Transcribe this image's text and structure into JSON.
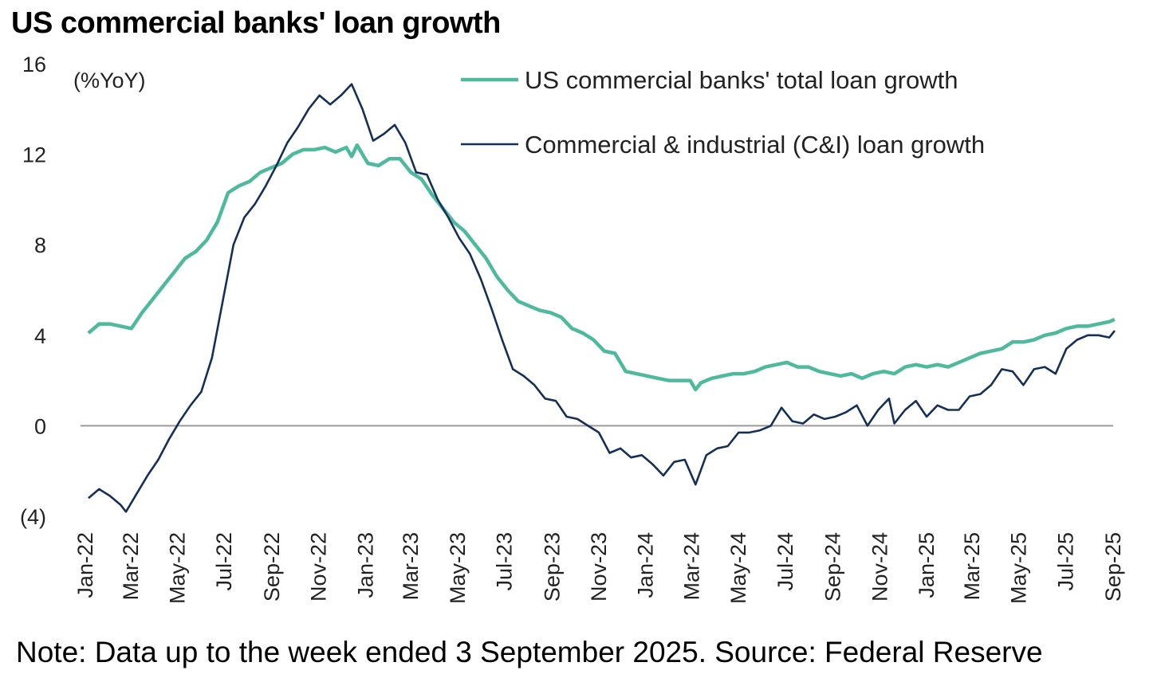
{
  "title": "US commercial banks' loan growth",
  "note": "Note: Data up to the week ended 3 September 2025. Source: Federal Reserve",
  "colors": {
    "total": "#4dba9e",
    "ci": "#14305a",
    "zero_line": "#9a9a9a"
  },
  "chart_data": {
    "type": "line",
    "title": "US commercial banks' loan growth",
    "unit_label": "(%YoY)",
    "ylim": [
      -4,
      16
    ],
    "yticks": [
      16,
      12,
      8,
      4,
      0,
      -4
    ],
    "ytick_labels": [
      "16",
      "12",
      "8",
      "4",
      "0",
      "(4)"
    ],
    "x_range": [
      "2022-01",
      "2025-09"
    ],
    "xtick_labels": [
      "Jan-22",
      "Mar-22",
      "May-22",
      "Jul-22",
      "Sep-22",
      "Nov-22",
      "Jan-23",
      "Mar-23",
      "May-23",
      "Jul-23",
      "Sep-23",
      "Nov-23",
      "Jan-24",
      "Mar-24",
      "May-24",
      "Jul-24",
      "Sep-24",
      "Nov-24",
      "Jan-25",
      "Mar-25",
      "May-25",
      "Jul-25",
      "Sep-25"
    ],
    "grid": false,
    "legend_position": "top-right",
    "series": [
      {
        "name": "US commercial banks' total loan growth",
        "color": "#4dba9e",
        "points": [
          [
            "2022-01-05",
            4.1
          ],
          [
            "2022-01-19",
            4.5
          ],
          [
            "2022-02-02",
            4.5
          ],
          [
            "2022-02-16",
            4.4
          ],
          [
            "2022-03-02",
            4.3
          ],
          [
            "2022-03-16",
            5.0
          ],
          [
            "2022-03-30",
            5.6
          ],
          [
            "2022-04-13",
            6.2
          ],
          [
            "2022-04-27",
            6.8
          ],
          [
            "2022-05-11",
            7.4
          ],
          [
            "2022-05-25",
            7.7
          ],
          [
            "2022-06-08",
            8.2
          ],
          [
            "2022-06-22",
            9.0
          ],
          [
            "2022-07-06",
            10.3
          ],
          [
            "2022-07-20",
            10.6
          ],
          [
            "2022-08-03",
            10.8
          ],
          [
            "2022-08-17",
            11.2
          ],
          [
            "2022-08-31",
            11.4
          ],
          [
            "2022-09-14",
            11.6
          ],
          [
            "2022-09-28",
            12.0
          ],
          [
            "2022-10-12",
            12.2
          ],
          [
            "2022-10-26",
            12.2
          ],
          [
            "2022-11-09",
            12.3
          ],
          [
            "2022-11-23",
            12.1
          ],
          [
            "2022-12-07",
            12.3
          ],
          [
            "2022-12-14",
            11.9
          ],
          [
            "2022-12-21",
            12.4
          ],
          [
            "2023-01-04",
            11.6
          ],
          [
            "2023-01-18",
            11.5
          ],
          [
            "2023-02-01",
            11.8
          ],
          [
            "2023-02-15",
            11.8
          ],
          [
            "2023-03-01",
            11.2
          ],
          [
            "2023-03-15",
            10.9
          ],
          [
            "2023-03-29",
            10.2
          ],
          [
            "2023-04-12",
            9.6
          ],
          [
            "2023-04-26",
            9.0
          ],
          [
            "2023-05-10",
            8.6
          ],
          [
            "2023-05-24",
            8.0
          ],
          [
            "2023-06-07",
            7.4
          ],
          [
            "2023-06-21",
            6.6
          ],
          [
            "2023-07-05",
            6.0
          ],
          [
            "2023-07-19",
            5.5
          ],
          [
            "2023-08-02",
            5.3
          ],
          [
            "2023-08-16",
            5.1
          ],
          [
            "2023-08-30",
            5.0
          ],
          [
            "2023-09-13",
            4.8
          ],
          [
            "2023-09-27",
            4.3
          ],
          [
            "2023-10-11",
            4.1
          ],
          [
            "2023-10-25",
            3.8
          ],
          [
            "2023-11-08",
            3.3
          ],
          [
            "2023-11-22",
            3.2
          ],
          [
            "2023-12-06",
            2.4
          ],
          [
            "2023-12-20",
            2.3
          ],
          [
            "2024-01-03",
            2.2
          ],
          [
            "2024-01-17",
            2.1
          ],
          [
            "2024-01-31",
            2.0
          ],
          [
            "2024-02-14",
            2.0
          ],
          [
            "2024-02-28",
            2.0
          ],
          [
            "2024-03-06",
            1.6
          ],
          [
            "2024-03-13",
            1.9
          ],
          [
            "2024-03-27",
            2.1
          ],
          [
            "2024-04-10",
            2.2
          ],
          [
            "2024-04-24",
            2.3
          ],
          [
            "2024-05-08",
            2.3
          ],
          [
            "2024-05-22",
            2.4
          ],
          [
            "2024-06-05",
            2.6
          ],
          [
            "2024-06-19",
            2.7
          ],
          [
            "2024-07-03",
            2.8
          ],
          [
            "2024-07-17",
            2.6
          ],
          [
            "2024-07-31",
            2.6
          ],
          [
            "2024-08-14",
            2.4
          ],
          [
            "2024-08-28",
            2.3
          ],
          [
            "2024-09-11",
            2.2
          ],
          [
            "2024-09-25",
            2.3
          ],
          [
            "2024-10-09",
            2.1
          ],
          [
            "2024-10-23",
            2.3
          ],
          [
            "2024-11-06",
            2.4
          ],
          [
            "2024-11-20",
            2.3
          ],
          [
            "2024-12-04",
            2.6
          ],
          [
            "2024-12-18",
            2.7
          ],
          [
            "2025-01-01",
            2.6
          ],
          [
            "2025-01-15",
            2.7
          ],
          [
            "2025-01-29",
            2.6
          ],
          [
            "2025-02-12",
            2.8
          ],
          [
            "2025-02-26",
            3.0
          ],
          [
            "2025-03-12",
            3.2
          ],
          [
            "2025-03-26",
            3.3
          ],
          [
            "2025-04-09",
            3.4
          ],
          [
            "2025-04-23",
            3.7
          ],
          [
            "2025-05-07",
            3.7
          ],
          [
            "2025-05-21",
            3.8
          ],
          [
            "2025-06-04",
            4.0
          ],
          [
            "2025-06-18",
            4.1
          ],
          [
            "2025-07-02",
            4.3
          ],
          [
            "2025-07-16",
            4.4
          ],
          [
            "2025-07-30",
            4.4
          ],
          [
            "2025-08-13",
            4.5
          ],
          [
            "2025-08-27",
            4.6
          ],
          [
            "2025-09-03",
            4.7
          ]
        ]
      },
      {
        "name": "Commercial & industrial (C&I) loan growth",
        "color": "#14305a",
        "points": [
          [
            "2022-01-05",
            -3.2
          ],
          [
            "2022-01-19",
            -2.8
          ],
          [
            "2022-02-02",
            -3.1
          ],
          [
            "2022-02-16",
            -3.5
          ],
          [
            "2022-02-23",
            -3.8
          ],
          [
            "2022-03-09",
            -3.0
          ],
          [
            "2022-03-23",
            -2.2
          ],
          [
            "2022-04-06",
            -1.5
          ],
          [
            "2022-04-20",
            -0.6
          ],
          [
            "2022-05-04",
            0.2
          ],
          [
            "2022-05-18",
            0.9
          ],
          [
            "2022-06-01",
            1.5
          ],
          [
            "2022-06-15",
            3.0
          ],
          [
            "2022-06-29",
            5.5
          ],
          [
            "2022-07-13",
            8.0
          ],
          [
            "2022-07-27",
            9.2
          ],
          [
            "2022-08-10",
            9.8
          ],
          [
            "2022-08-24",
            10.6
          ],
          [
            "2022-09-07",
            11.5
          ],
          [
            "2022-09-21",
            12.5
          ],
          [
            "2022-10-05",
            13.2
          ],
          [
            "2022-10-19",
            14.0
          ],
          [
            "2022-11-02",
            14.6
          ],
          [
            "2022-11-16",
            14.2
          ],
          [
            "2022-11-30",
            14.6
          ],
          [
            "2022-12-14",
            15.1
          ],
          [
            "2022-12-28",
            14.0
          ],
          [
            "2023-01-11",
            12.6
          ],
          [
            "2023-01-25",
            12.9
          ],
          [
            "2023-02-08",
            13.3
          ],
          [
            "2023-02-22",
            12.5
          ],
          [
            "2023-03-08",
            11.2
          ],
          [
            "2023-03-22",
            11.1
          ],
          [
            "2023-04-05",
            10.0
          ],
          [
            "2023-04-19",
            9.2
          ],
          [
            "2023-05-03",
            8.3
          ],
          [
            "2023-05-17",
            7.6
          ],
          [
            "2023-05-31",
            6.5
          ],
          [
            "2023-06-14",
            5.2
          ],
          [
            "2023-06-28",
            3.8
          ],
          [
            "2023-07-12",
            2.5
          ],
          [
            "2023-07-26",
            2.2
          ],
          [
            "2023-08-09",
            1.8
          ],
          [
            "2023-08-23",
            1.2
          ],
          [
            "2023-09-06",
            1.1
          ],
          [
            "2023-09-20",
            0.4
          ],
          [
            "2023-10-04",
            0.3
          ],
          [
            "2023-10-18",
            0.0
          ],
          [
            "2023-11-01",
            -0.3
          ],
          [
            "2023-11-15",
            -1.2
          ],
          [
            "2023-11-29",
            -1.0
          ],
          [
            "2023-12-13",
            -1.4
          ],
          [
            "2023-12-27",
            -1.3
          ],
          [
            "2024-01-10",
            -1.7
          ],
          [
            "2024-01-24",
            -2.2
          ],
          [
            "2024-02-07",
            -1.6
          ],
          [
            "2024-02-21",
            -1.5
          ],
          [
            "2024-03-06",
            -2.6
          ],
          [
            "2024-03-20",
            -1.3
          ],
          [
            "2024-04-03",
            -1.0
          ],
          [
            "2024-04-17",
            -0.9
          ],
          [
            "2024-05-01",
            -0.3
          ],
          [
            "2024-05-15",
            -0.3
          ],
          [
            "2024-05-29",
            -0.2
          ],
          [
            "2024-06-12",
            0.0
          ],
          [
            "2024-06-26",
            0.8
          ],
          [
            "2024-07-10",
            0.2
          ],
          [
            "2024-07-24",
            0.1
          ],
          [
            "2024-08-07",
            0.5
          ],
          [
            "2024-08-21",
            0.3
          ],
          [
            "2024-09-04",
            0.4
          ],
          [
            "2024-09-18",
            0.6
          ],
          [
            "2024-10-02",
            0.9
          ],
          [
            "2024-10-16",
            0.0
          ],
          [
            "2024-10-30",
            0.7
          ],
          [
            "2024-11-13",
            1.2
          ],
          [
            "2024-11-20",
            0.1
          ],
          [
            "2024-12-04",
            0.7
          ],
          [
            "2024-12-18",
            1.1
          ],
          [
            "2025-01-01",
            0.4
          ],
          [
            "2025-01-15",
            0.9
          ],
          [
            "2025-01-29",
            0.7
          ],
          [
            "2025-02-12",
            0.7
          ],
          [
            "2025-02-26",
            1.3
          ],
          [
            "2025-03-12",
            1.4
          ],
          [
            "2025-03-26",
            1.8
          ],
          [
            "2025-04-09",
            2.5
          ],
          [
            "2025-04-23",
            2.4
          ],
          [
            "2025-05-07",
            1.8
          ],
          [
            "2025-05-21",
            2.5
          ],
          [
            "2025-06-04",
            2.6
          ],
          [
            "2025-06-18",
            2.3
          ],
          [
            "2025-07-02",
            3.4
          ],
          [
            "2025-07-16",
            3.8
          ],
          [
            "2025-07-30",
            4.0
          ],
          [
            "2025-08-13",
            4.0
          ],
          [
            "2025-08-27",
            3.9
          ],
          [
            "2025-09-03",
            4.2
          ]
        ]
      }
    ]
  }
}
